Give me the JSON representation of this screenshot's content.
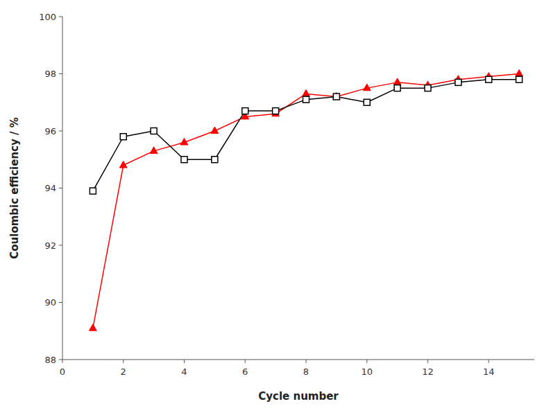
{
  "chart_data": {
    "type": "line",
    "xlabel": "Cycle number",
    "ylabel": "Coulombic efficiency / %",
    "x": [
      1,
      2,
      3,
      4,
      5,
      6,
      7,
      8,
      9,
      10,
      11,
      12,
      13,
      14,
      15
    ],
    "series": [
      {
        "color": "#000000",
        "marker": "square",
        "line_style": "solid",
        "values": [
          93.9,
          95.8,
          96.0,
          95.0,
          95.0,
          96.7,
          96.7,
          97.1,
          97.2,
          97.0,
          97.5,
          97.5,
          97.7,
          97.8,
          97.8
        ]
      },
      {
        "color": "#ff0000",
        "marker": "triangle",
        "line_style": "solid",
        "values": [
          89.1,
          94.8,
          95.3,
          95.6,
          96.0,
          96.5,
          96.6,
          97.3,
          97.2,
          97.5,
          97.7,
          97.6,
          97.8,
          97.9,
          98.0
        ]
      }
    ],
    "xlim": [
      0,
      15.5
    ],
    "ylim": [
      88,
      100
    ],
    "xticks": [
      0,
      2,
      4,
      6,
      8,
      10,
      12,
      14
    ],
    "yticks": [
      88,
      90,
      92,
      94,
      96,
      98,
      100
    ],
    "grid": false
  }
}
